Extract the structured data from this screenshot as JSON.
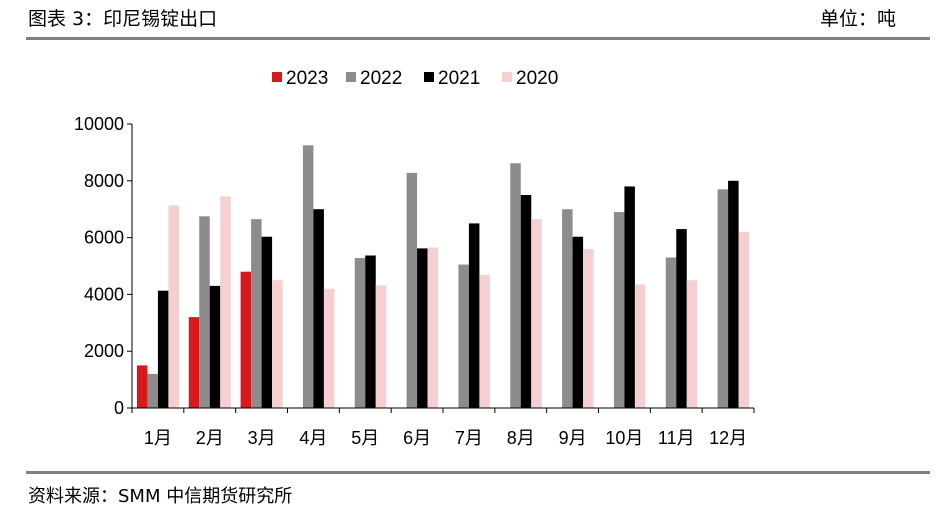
{
  "header": {
    "title": "图表 3：印尼锡锭出口",
    "unit": "单位：吨"
  },
  "footer": {
    "source": "资料来源：SMM 中信期货研究所"
  },
  "chart_data": {
    "type": "bar",
    "categories": [
      "1月",
      "2月",
      "3月",
      "4月",
      "5月",
      "6月",
      "7月",
      "8月",
      "9月",
      "10月",
      "11月",
      "12月"
    ],
    "ylim": [
      0,
      10000
    ],
    "yticks": [
      0,
      2000,
      4000,
      6000,
      8000,
      10000
    ],
    "legend_position": "top",
    "series": [
      {
        "name": "2023",
        "color": "#d7191c",
        "values": [
          1500,
          3200,
          4800,
          null,
          null,
          null,
          null,
          null,
          null,
          null,
          null,
          null
        ]
      },
      {
        "name": "2022",
        "color": "#8c8c8c",
        "values": [
          1200,
          6750,
          6650,
          9250,
          5280,
          8280,
          5050,
          8620,
          7000,
          6900,
          5300,
          7700
        ]
      },
      {
        "name": "2021",
        "color": "#000000",
        "values": [
          4130,
          4300,
          6030,
          7000,
          5370,
          5620,
          6500,
          7500,
          6030,
          7800,
          6300,
          8000
        ]
      },
      {
        "name": "2020",
        "color": "#f6cfd1",
        "values": [
          7130,
          7450,
          4500,
          4200,
          4320,
          5650,
          4680,
          6650,
          5600,
          4350,
          4500,
          6200
        ]
      }
    ],
    "xlabel": "",
    "ylabel": "",
    "grid": false
  }
}
